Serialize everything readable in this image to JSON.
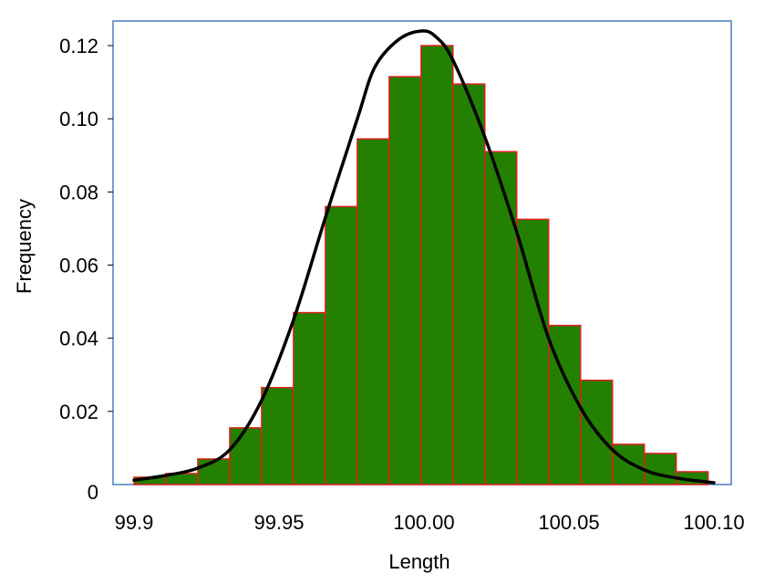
{
  "chart_data": {
    "type": "bar",
    "title": "",
    "xlabel": "Length",
    "ylabel": "Frequency",
    "xlim": [
      99.9,
      100.1
    ],
    "ylim": [
      0,
      0.12
    ],
    "x_ticks": [
      {
        "value": 99.9,
        "label": "99.9"
      },
      {
        "value": 99.95,
        "label": "99.95"
      },
      {
        "value": 100.0,
        "label": "100.00"
      },
      {
        "value": 100.05,
        "label": "100.05"
      },
      {
        "value": 100.1,
        "label": "100.10"
      }
    ],
    "y_ticks": [
      {
        "value": 0,
        "label": "0"
      },
      {
        "value": 0.02,
        "label": "0.02"
      },
      {
        "value": 0.04,
        "label": "0.04"
      },
      {
        "value": 0.06,
        "label": "0.06"
      },
      {
        "value": 0.08,
        "label": "0.08"
      },
      {
        "value": 0.1,
        "label": "0.10"
      },
      {
        "value": 0.12,
        "label": "0.12"
      }
    ],
    "bins": [
      {
        "x0": 99.9,
        "x1": 99.911,
        "value": 0.002
      },
      {
        "x0": 99.911,
        "x1": 99.922,
        "value": 0.003
      },
      {
        "x0": 99.922,
        "x1": 99.933,
        "value": 0.007
      },
      {
        "x0": 99.933,
        "x1": 99.944,
        "value": 0.0155
      },
      {
        "x0": 99.944,
        "x1": 99.955,
        "value": 0.0265
      },
      {
        "x0": 99.955,
        "x1": 99.966,
        "value": 0.047
      },
      {
        "x0": 99.966,
        "x1": 99.977,
        "value": 0.076
      },
      {
        "x0": 99.977,
        "x1": 99.988,
        "value": 0.0945
      },
      {
        "x0": 99.988,
        "x1": 99.999,
        "value": 0.1115
      },
      {
        "x0": 99.999,
        "x1": 100.01,
        "value": 0.12
      },
      {
        "x0": 100.01,
        "x1": 100.021,
        "value": 0.1095
      },
      {
        "x0": 100.021,
        "x1": 100.032,
        "value": 0.091
      },
      {
        "x0": 100.032,
        "x1": 100.043,
        "value": 0.0725
      },
      {
        "x0": 100.043,
        "x1": 100.054,
        "value": 0.0435
      },
      {
        "x0": 100.054,
        "x1": 100.065,
        "value": 0.0285
      },
      {
        "x0": 100.065,
        "x1": 100.076,
        "value": 0.011
      },
      {
        "x0": 100.076,
        "x1": 100.087,
        "value": 0.0085
      },
      {
        "x0": 100.087,
        "x1": 100.098,
        "value": 0.0035
      }
    ],
    "curve": {
      "type": "normal-fit",
      "x": [
        99.9,
        99.911,
        99.922,
        99.933,
        99.944,
        99.955,
        99.966,
        99.977,
        99.983,
        99.991,
        99.999,
        100.004,
        100.01,
        100.021,
        100.032,
        100.043,
        100.054,
        100.065,
        100.076,
        100.087,
        100.1
      ],
      "y": [
        0.0012,
        0.0025,
        0.0045,
        0.0095,
        0.023,
        0.045,
        0.073,
        0.1,
        0.114,
        0.1215,
        0.124,
        0.1225,
        0.116,
        0.095,
        0.069,
        0.04,
        0.021,
        0.0095,
        0.004,
        0.0018,
        0.0005
      ]
    },
    "colors": {
      "bar_fill": "#238000",
      "bar_edge": "#E02020",
      "curve": "#000000",
      "frame": "#4A7EBB"
    },
    "grid": false,
    "legend": "none"
  }
}
